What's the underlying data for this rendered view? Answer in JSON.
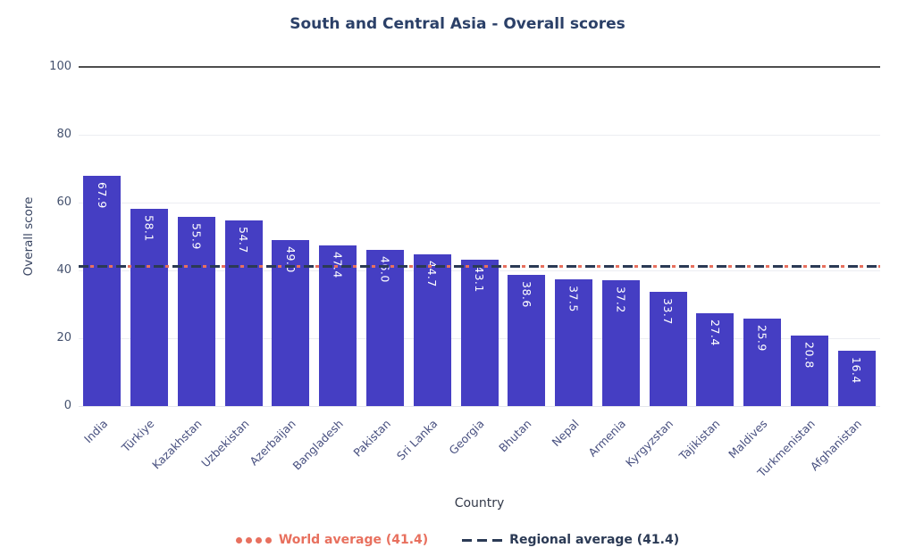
{
  "chart_data": {
    "type": "bar",
    "title": "South and Central Asia - Overall scores",
    "xlabel": "Country",
    "ylabel": "Overall score",
    "categories": [
      "India",
      "Türkiye",
      "Kazakhstan",
      "Uzbekistan",
      "Azerbaijan",
      "Bangladesh",
      "Pakistan",
      "Sri Lanka",
      "Georgia",
      "Bhutan",
      "Nepal",
      "Armenia",
      "Kyrgyzstan",
      "Tajikistan",
      "Maldives",
      "Turkmenistan",
      "Afghanistan"
    ],
    "values": [
      67.9,
      58.1,
      55.9,
      54.7,
      49.0,
      47.4,
      46.0,
      44.7,
      43.1,
      38.6,
      37.5,
      37.2,
      33.7,
      27.4,
      25.9,
      20.8,
      16.4
    ],
    "ylim": [
      0,
      100
    ],
    "yticks": [
      0,
      20,
      40,
      60,
      80,
      100
    ],
    "grid": true,
    "bar_color": "#453EC3",
    "value_label_color": "#FFFFFF",
    "reference_lines": [
      {
        "name": "World average",
        "value": 41.4,
        "style": "dotted",
        "color": "#E8705E"
      },
      {
        "name": "Regional average",
        "value": 41.4,
        "style": "dashed",
        "color": "#2B3A55"
      }
    ],
    "legend_position": "bottom",
    "legend": {
      "world_label": "World average (41.4)",
      "regional_label": "Regional average (41.4)"
    }
  }
}
